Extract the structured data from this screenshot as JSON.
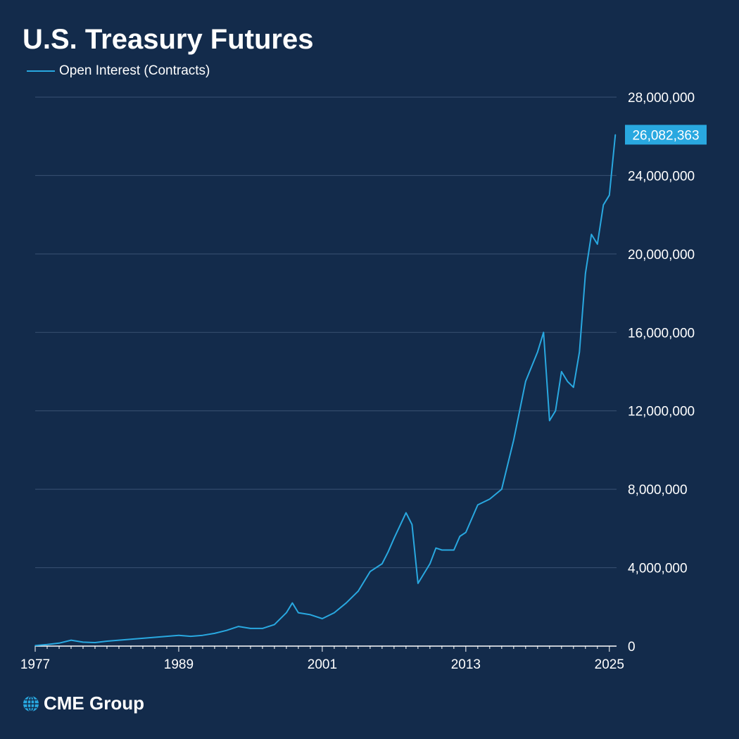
{
  "title": "U.S. Treasury Futures",
  "legend": {
    "series_label": "Open Interest (Contracts)"
  },
  "logo": {
    "text": "CME Group"
  },
  "colors": {
    "background": "#132b4b",
    "line": "#29a8e0",
    "grid": "#3a5273",
    "text": "#ffffff"
  },
  "chart_data": {
    "type": "line",
    "title": "U.S. Treasury Futures",
    "xlabel": "",
    "ylabel": "",
    "x_ticks": [
      "1977",
      "1989",
      "2001",
      "2013",
      "2025"
    ],
    "y_ticks": [
      "28,000,000",
      "24,000,000",
      "20,000,000",
      "16,000,000",
      "12,000,000",
      "8,000,000",
      "4,000,000",
      "0"
    ],
    "xlim": [
      1977,
      2025.6
    ],
    "ylim": [
      0,
      28000000
    ],
    "grid": true,
    "y_axis_side": "right",
    "legend_position": "top-left",
    "last_value_label": "26,082,363",
    "series": [
      {
        "name": "Open Interest (Contracts)",
        "x": [
          1977,
          1978,
          1979,
          1980,
          1981,
          1982,
          1983,
          1984,
          1985,
          1986,
          1987,
          1988,
          1989,
          1990,
          1991,
          1992,
          1993,
          1994,
          1995,
          1996,
          1997,
          1998,
          1998.5,
          1999,
          2000,
          2001,
          2002,
          2003,
          2004,
          2005,
          2006,
          2006.5,
          2007,
          2008,
          2008.5,
          2009,
          2010,
          2010.5,
          2011,
          2012,
          2012.5,
          2013,
          2014,
          2015,
          2016,
          2017,
          2018,
          2019,
          2019.5,
          2020,
          2020.5,
          2021,
          2021.5,
          2022,
          2022.5,
          2023,
          2023.5,
          2024,
          2024.5,
          2025,
          2025.5
        ],
        "values": [
          30000,
          80000,
          150000,
          300000,
          200000,
          180000,
          250000,
          300000,
          350000,
          400000,
          450000,
          500000,
          550000,
          500000,
          550000,
          650000,
          800000,
          1000000,
          900000,
          900000,
          1100000,
          1700000,
          2200000,
          1700000,
          1600000,
          1400000,
          1700000,
          2200000,
          2800000,
          3800000,
          4200000,
          4800000,
          5500000,
          6800000,
          6200000,
          3200000,
          4200000,
          5000000,
          4900000,
          4900000,
          5600000,
          5800000,
          7200000,
          7500000,
          8000000,
          10500000,
          13500000,
          15000000,
          16000000,
          11500000,
          12000000,
          14000000,
          13500000,
          13200000,
          15000000,
          19000000,
          21000000,
          20500000,
          22500000,
          23000000,
          26082363
        ]
      }
    ]
  }
}
